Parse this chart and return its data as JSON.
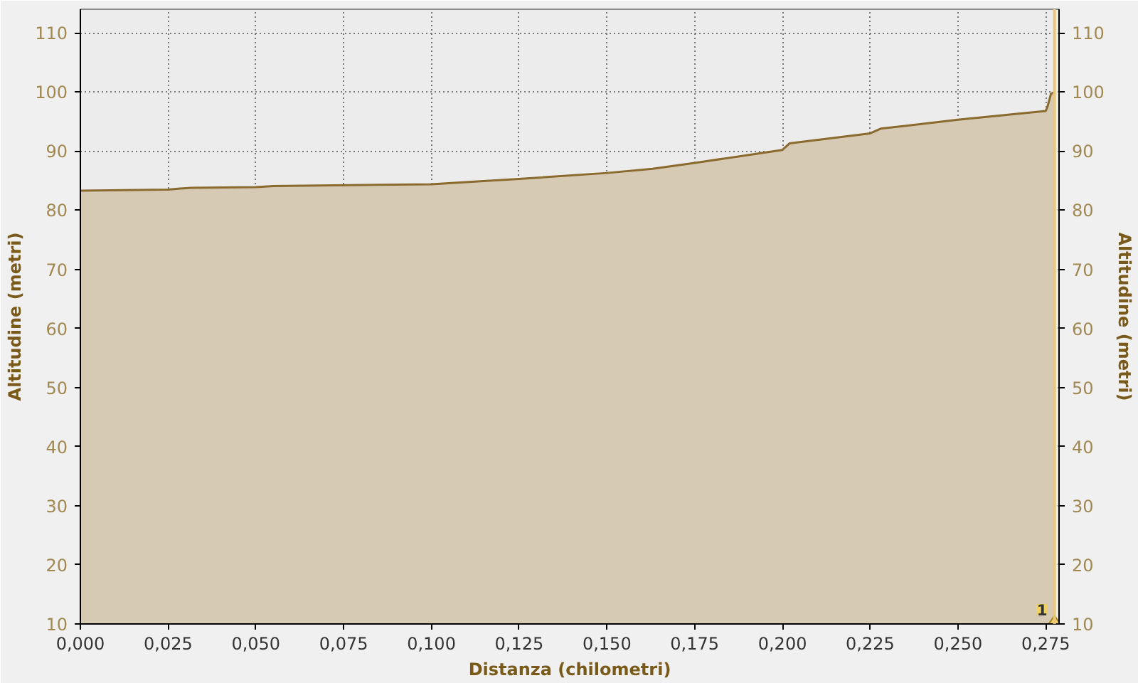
{
  "chart_data": {
    "type": "area",
    "xlabel": "Distanza (chilometri)",
    "ylabel": "Altitudine (metri)",
    "y2label": "Altitudine (metri)",
    "x": [
      0,
      0.025,
      0.0315,
      0.05,
      0.055,
      0.1,
      0.125,
      0.15,
      0.163,
      0.175,
      0.2,
      0.202,
      0.225,
      0.228,
      0.25,
      0.275,
      0.2755,
      0.2765,
      0.2775
    ],
    "series": [
      {
        "color": "#8b6a2e",
        "values": [
          83.3,
          83.5,
          83.8,
          83.9,
          84.1,
          84.4,
          85.3,
          86.3,
          87,
          88,
          90.2,
          91.3,
          93,
          93.8,
          95.3,
          96.8,
          97.5,
          99.7,
          100
        ]
      }
    ],
    "xlim": [
      0,
      0.2788
    ],
    "ylim": [
      10,
      114
    ],
    "y2lim": [
      10,
      114
    ],
    "xticks": [
      {
        "value": 0,
        "label": "0,000"
      },
      {
        "value": 0.025,
        "label": "0,025"
      },
      {
        "value": 0.05,
        "label": "0,050"
      },
      {
        "value": 0.075,
        "label": "0,075"
      },
      {
        "value": 0.1,
        "label": "0,100"
      },
      {
        "value": 0.125,
        "label": "0,125"
      },
      {
        "value": 0.15,
        "label": "0,150"
      },
      {
        "value": 0.175,
        "label": "0,175"
      },
      {
        "value": 0.2,
        "label": "0,200"
      },
      {
        "value": 0.225,
        "label": "0,225"
      },
      {
        "value": 0.25,
        "label": "0,250"
      },
      {
        "value": 0.275,
        "label": "0,275"
      }
    ],
    "yticks": [
      10,
      20,
      30,
      40,
      50,
      60,
      70,
      80,
      90,
      100,
      110
    ],
    "y2ticks": [
      10,
      20,
      30,
      40,
      50,
      60,
      70,
      80,
      90,
      100,
      110
    ],
    "ref_lines": [
      {
        "axis": "x",
        "value": 0.2775,
        "color": "#e8c878"
      }
    ],
    "annotations": [
      {
        "text": "1",
        "x": 0.2775,
        "y": 10
      }
    ],
    "grid": true
  }
}
